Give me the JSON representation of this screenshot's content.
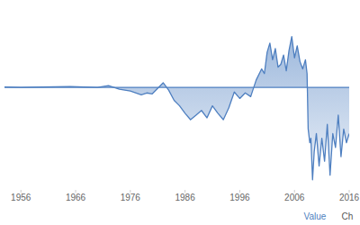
{
  "chart_data": {
    "type": "area",
    "x": [
      1953,
      1956,
      1960,
      1965,
      1970,
      1972,
      1974,
      1976,
      1978,
      1979,
      1980,
      1982,
      1983,
      1984,
      1985,
      1986,
      1987,
      1988,
      1989,
      1990,
      1991,
      1992,
      1993,
      1994,
      1995,
      1996,
      1997,
      1998,
      1999,
      2000,
      2000.5,
      2001,
      2001.5,
      2002,
      2002.5,
      2003,
      2003.5,
      2004,
      2004.5,
      2005,
      2005.5,
      2006,
      2006.5,
      2007,
      2007.5,
      2008,
      2008.3,
      2008.5,
      2008.8,
      2009,
      2009.3,
      2009.6,
      2010,
      2010.5,
      2011,
      2011.5,
      2012,
      2012.5,
      2013,
      2013.5,
      2014,
      2014.5,
      2015,
      2015.5,
      2016
    ],
    "values": [
      0.5,
      0,
      0.5,
      1,
      0,
      2,
      -2,
      -4,
      -8,
      -6,
      -7,
      5,
      -3,
      -14,
      -20,
      -28,
      -35,
      -30,
      -25,
      -33,
      -20,
      -28,
      -35,
      -22,
      -5,
      -12,
      -6,
      -10,
      8,
      20,
      15,
      38,
      48,
      30,
      42,
      22,
      25,
      35,
      18,
      40,
      55,
      32,
      45,
      28,
      20,
      30,
      15,
      -45,
      -60,
      -55,
      -100,
      -70,
      -50,
      -85,
      -55,
      -80,
      -40,
      -95,
      -50,
      -65,
      -30,
      -75,
      -45,
      -60,
      -50
    ],
    "color": "#4e7fc0",
    "xlim": [
      1953,
      2016
    ],
    "xticks": [
      1956,
      1966,
      1976,
      1986,
      1996,
      2006,
      2016
    ],
    "ylim": [
      -110,
      80
    ],
    "yticks": [
      0
    ],
    "tick_labels": "x",
    "grid": false,
    "annotations": [
      "Value",
      "Ch"
    ]
  }
}
